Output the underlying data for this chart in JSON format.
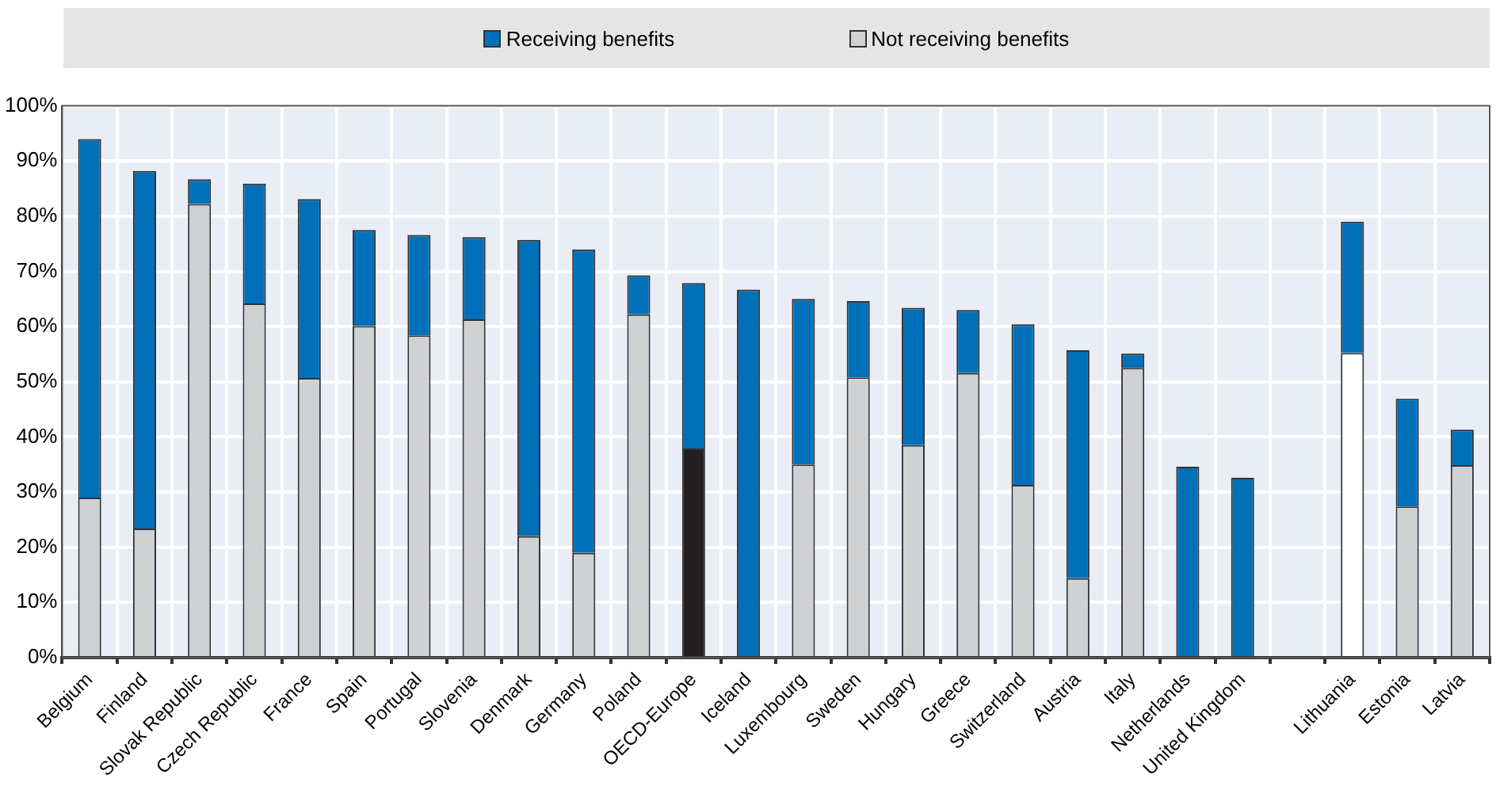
{
  "chart_data": {
    "type": "bar",
    "stacked": true,
    "categories": [
      "Belgium",
      "Finland",
      "Slovak Republic",
      "Czech Republic",
      "France",
      "Spain",
      "Portugal",
      "Slovenia",
      "Denmark",
      "Germany",
      "Poland",
      "OECD-Europe",
      "Iceland",
      "Luxembourg",
      "Sweden",
      "Hungary",
      "Greece",
      "Switzerland",
      "Austria",
      "Italy",
      "Netherlands",
      "United Kingdom",
      null,
      "Lithuania",
      "Estonia",
      "Latvia"
    ],
    "series": [
      {
        "name": "Not receiving benefits",
        "color": "#d0d1d3",
        "colors": [
          "#d0d1d3",
          "#d0d1d3",
          "#d0d1d3",
          "#d0d1d3",
          "#d0d1d3",
          "#d0d1d3",
          "#d0d1d3",
          "#d0d1d3",
          "#d0d1d3",
          "#d0d1d3",
          "#d0d1d3",
          "#231f20",
          "#d0d1d3",
          "#d0d1d3",
          "#d0d1d3",
          "#d0d1d3",
          "#d0d1d3",
          "#d0d1d3",
          "#d0d1d3",
          "#d0d1d3",
          "#d0d1d3",
          "#d0d1d3",
          "#d0d1d3",
          "#ffffff",
          "#d0d1d3",
          "#d0d1d3"
        ],
        "values": [
          29,
          23.4,
          82.2,
          64.2,
          50.7,
          60.1,
          58.4,
          61.3,
          22,
          19,
          62.2,
          37.9,
          0,
          35,
          50.8,
          38.5,
          51.6,
          31.3,
          14.4,
          52.5,
          0,
          0,
          null,
          55.2,
          27.4,
          34.9
        ]
      },
      {
        "name": "Receiving benefits",
        "color": "#0070b8",
        "values": [
          65,
          64.8,
          4.5,
          21.7,
          32.4,
          17.4,
          18.2,
          14.9,
          53.7,
          55,
          7.1,
          30,
          66.7,
          30,
          13.8,
          24.9,
          11.4,
          29.1,
          41.3,
          2.6,
          34.6,
          32.6,
          null,
          23.8,
          19.5,
          6.4
        ]
      }
    ],
    "ylim": [
      0,
      100
    ],
    "yticks": [
      {
        "value": 0,
        "label": "0%"
      },
      {
        "value": 10,
        "label": "10%"
      },
      {
        "value": 20,
        "label": "20%"
      },
      {
        "value": 30,
        "label": "30%"
      },
      {
        "value": 40,
        "label": "40%"
      },
      {
        "value": 50,
        "label": "50%"
      },
      {
        "value": 60,
        "label": "60%"
      },
      {
        "value": 70,
        "label": "70%"
      },
      {
        "value": 80,
        "label": "80%"
      },
      {
        "value": 90,
        "label": "90%"
      },
      {
        "value": 100,
        "label": "100%"
      }
    ],
    "grid": true,
    "legend": "top"
  }
}
